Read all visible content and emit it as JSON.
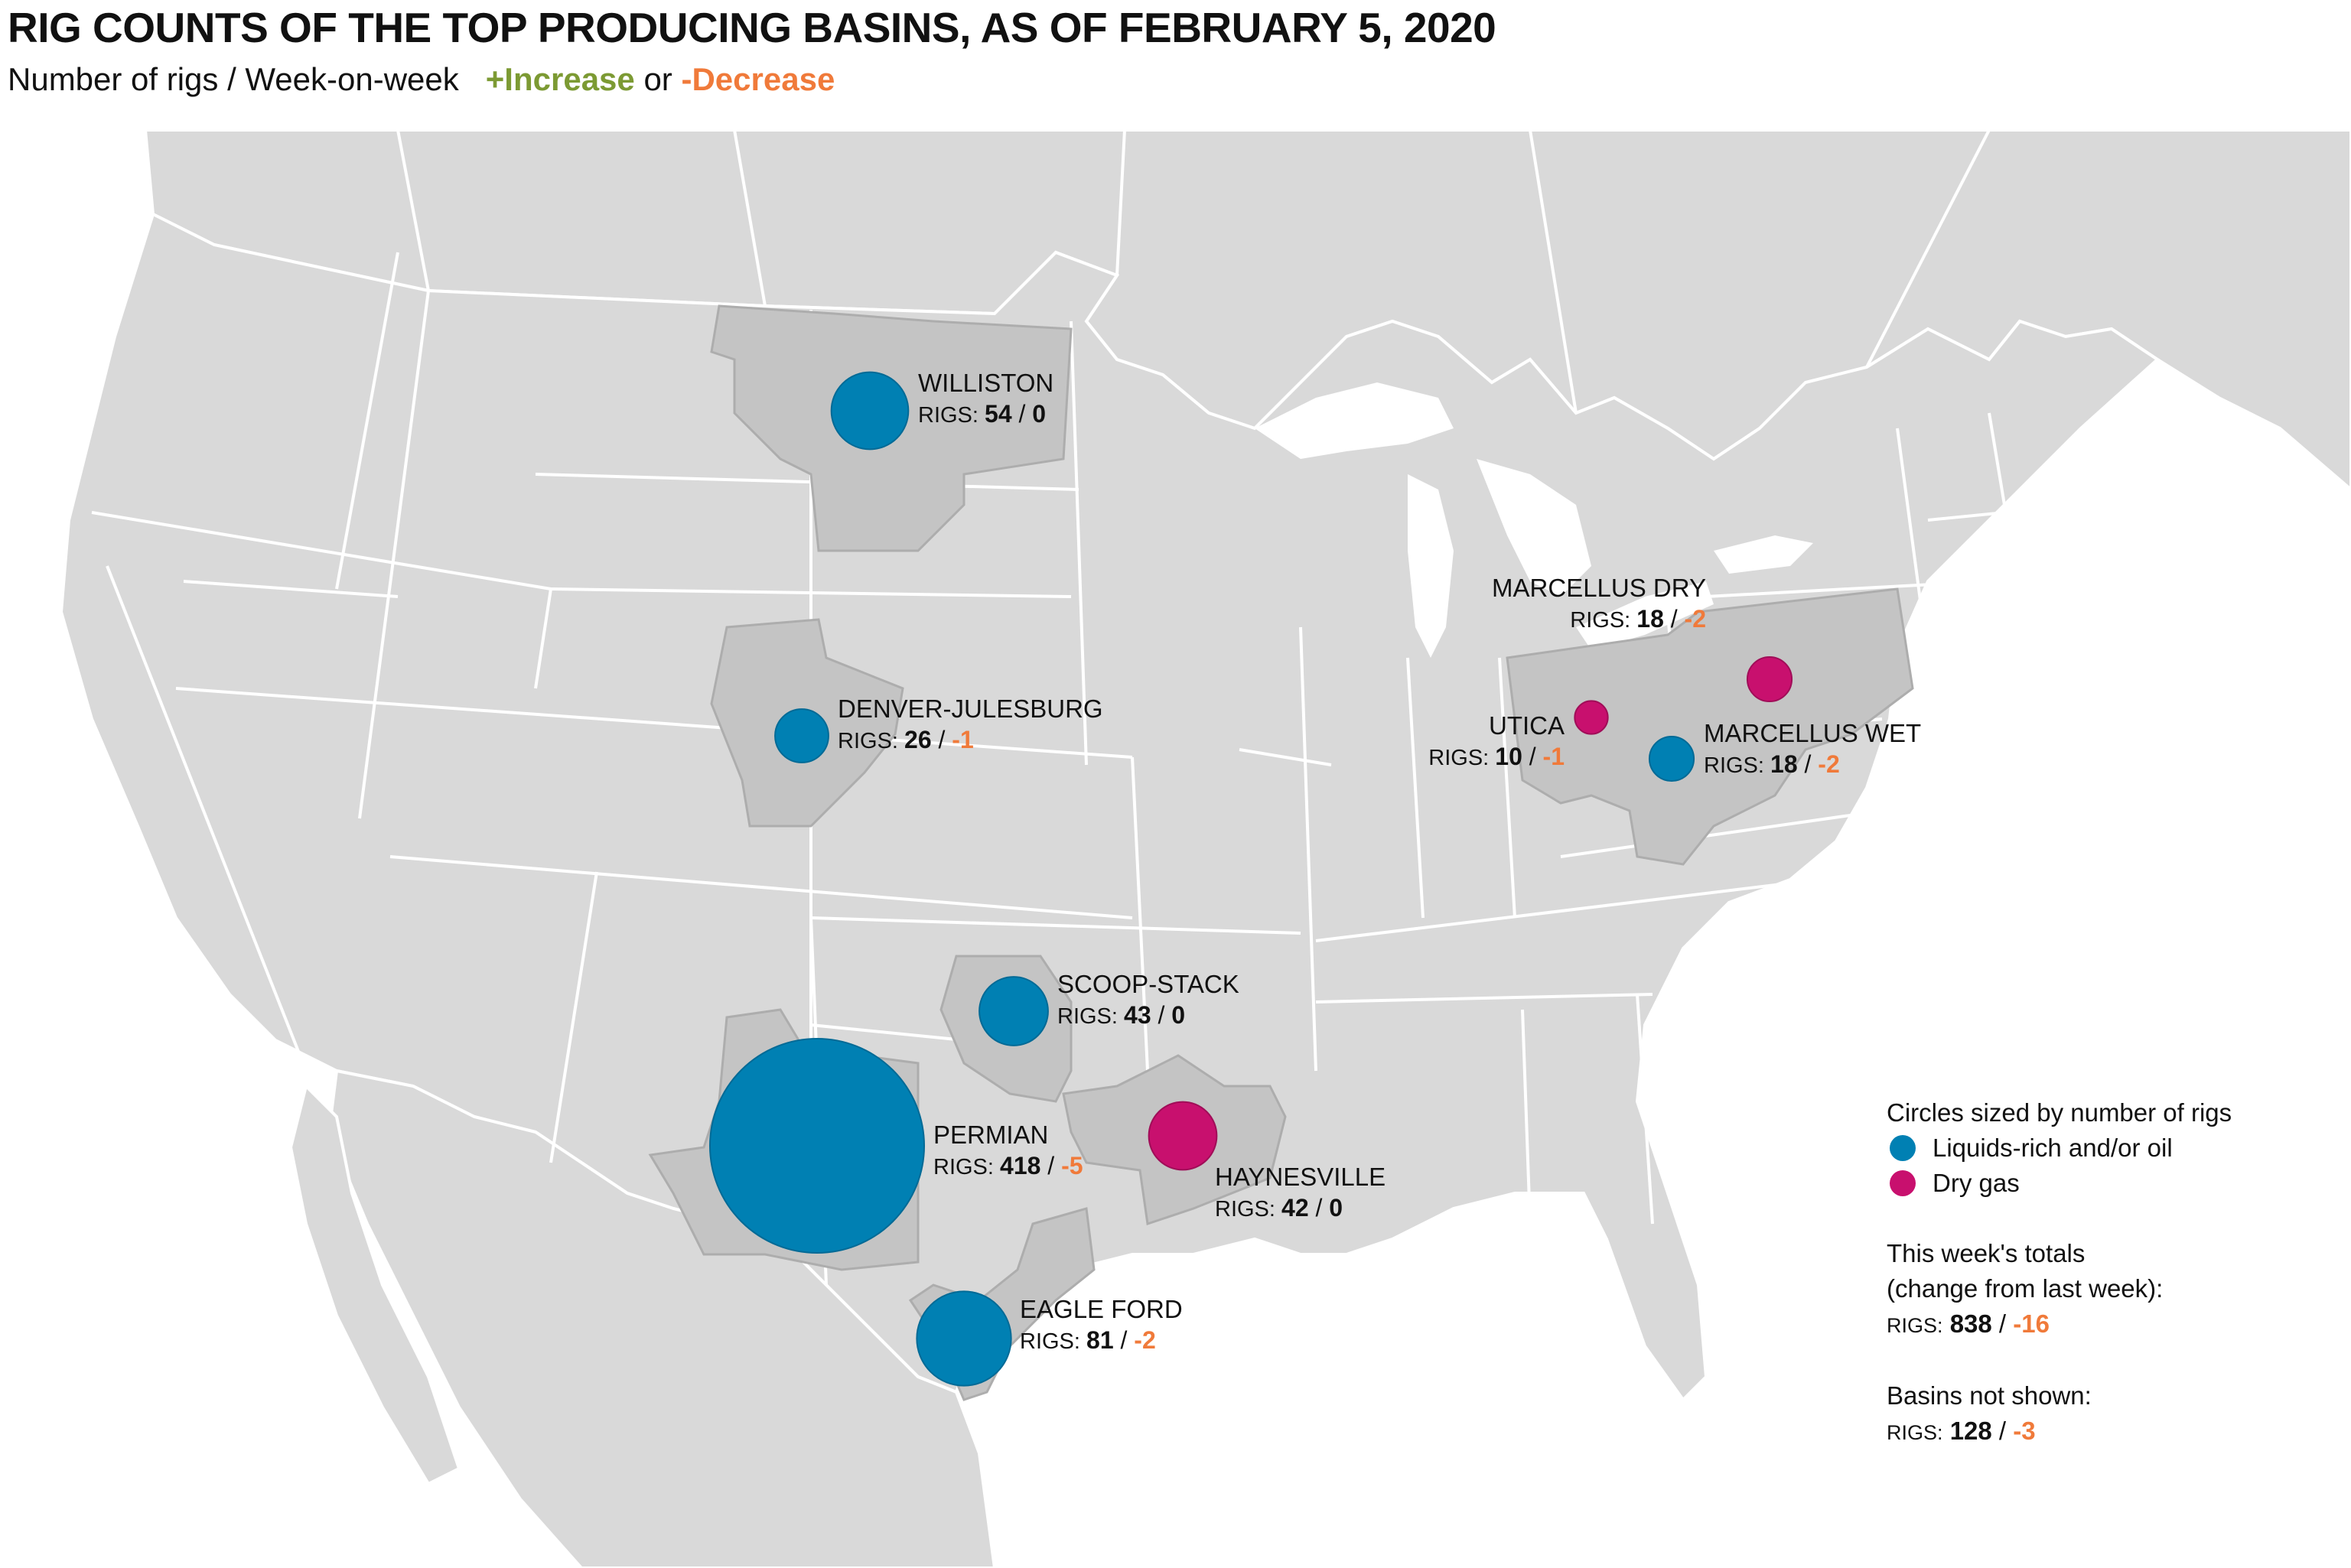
{
  "title": "RIG COUNTS OF THE TOP PRODUCING BASINS, AS OF FEBRUARY 5, 2020",
  "subtitle": {
    "lead": "Number of rigs / Week-on-week",
    "increase": "+Increase",
    "or": "or",
    "decrease": "-Decrease"
  },
  "colors": {
    "oil": "#0080b3",
    "gas": "#c8106e",
    "increase": "#7c9a33",
    "decrease": "#f07a3a",
    "land": "#d9d9d9",
    "basin": "#c4c4c4",
    "border": "#ffffff"
  },
  "rigs_label": "RIGS:",
  "basins": [
    {
      "name": "WILLISTON",
      "rigs": "54",
      "change": "0",
      "type": "oil"
    },
    {
      "name": "DENVER-JULESBURG",
      "rigs": "26",
      "change": "-1",
      "type": "oil"
    },
    {
      "name": "SCOOP-STACK",
      "rigs": "43",
      "change": "0",
      "type": "oil"
    },
    {
      "name": "PERMIAN",
      "rigs": "418",
      "change": "-5",
      "type": "oil"
    },
    {
      "name": "EAGLE FORD",
      "rigs": "81",
      "change": "-2",
      "type": "oil"
    },
    {
      "name": "HAYNESVILLE",
      "rigs": "42",
      "change": "0",
      "type": "gas"
    },
    {
      "name": "UTICA",
      "rigs": "10",
      "change": "-1",
      "type": "gas"
    },
    {
      "name": "MARCELLUS DRY",
      "rigs": "18",
      "change": "-2",
      "type": "gas"
    },
    {
      "name": "MARCELLUS WET",
      "rigs": "18",
      "change": "-2",
      "type": "oil"
    }
  ],
  "legend": {
    "heading": "Circles sized by number of rigs",
    "oil_label": "Liquids-rich and/or oil",
    "gas_label": "Dry gas",
    "totals_line1": "This week's totals",
    "totals_line2": "(change from last week):",
    "totals_rigs": "838",
    "totals_change": "-16",
    "not_shown_heading": "Basins not shown:",
    "not_shown_rigs": "128",
    "not_shown_change": "-3"
  }
}
